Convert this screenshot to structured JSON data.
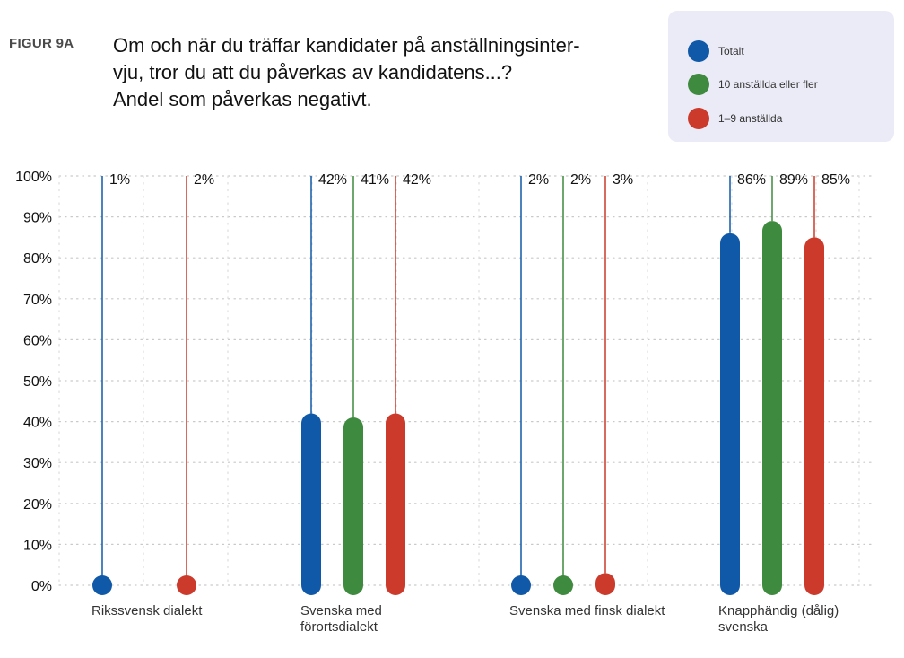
{
  "figure_label": "FIGUR 9A",
  "title_lines": [
    "Om och när du träffar kandidater på anställningsinter-",
    "vju, tror du att du påverkas av kandidatens...?",
    "Andel som påverkas negativt."
  ],
  "chart_data": {
    "type": "bar",
    "title": "Om och när du träffar kandidater på anställningsintervju, tror du att du påverkas av kandidatens...? Andel som påverkas negativt.",
    "categories": [
      "Rikssvensk dialekt",
      "Svenska med förortsdialekt",
      "Svenska med finsk dialekt",
      "Knapphändig (dålig) svenska"
    ],
    "category_lines": [
      [
        "Rikssvensk dialekt"
      ],
      [
        "Svenska med",
        "förortsdialekt"
      ],
      [
        "Svenska med finsk dialekt"
      ],
      [
        "Knapphändig (dålig)",
        "svenska"
      ]
    ],
    "series": [
      {
        "name": "Totalt",
        "color": "#1059a8",
        "values": [
          1,
          42,
          2,
          86
        ],
        "labels": [
          "1%",
          "42%",
          "2%",
          "86%"
        ]
      },
      {
        "name": "10 anställda eller fler",
        "color": "#3e8a3e",
        "values": [
          null,
          41,
          2,
          89
        ],
        "labels": [
          "",
          "41%",
          "2%",
          "89%"
        ]
      },
      {
        "name": "1–9 anställda",
        "color": "#cc3a2b",
        "values": [
          2,
          42,
          3,
          85
        ],
        "labels": [
          "2%",
          "42%",
          "3%",
          "85%"
        ]
      }
    ],
    "yticks": [
      "0%",
      "10%",
      "20%",
      "30%",
      "40%",
      "50%",
      "60%",
      "70%",
      "80%",
      "90%",
      "100%"
    ],
    "ylim": [
      0,
      100
    ],
    "ylabel": "",
    "xlabel": "",
    "grid": true,
    "legend_position": "top-right"
  }
}
